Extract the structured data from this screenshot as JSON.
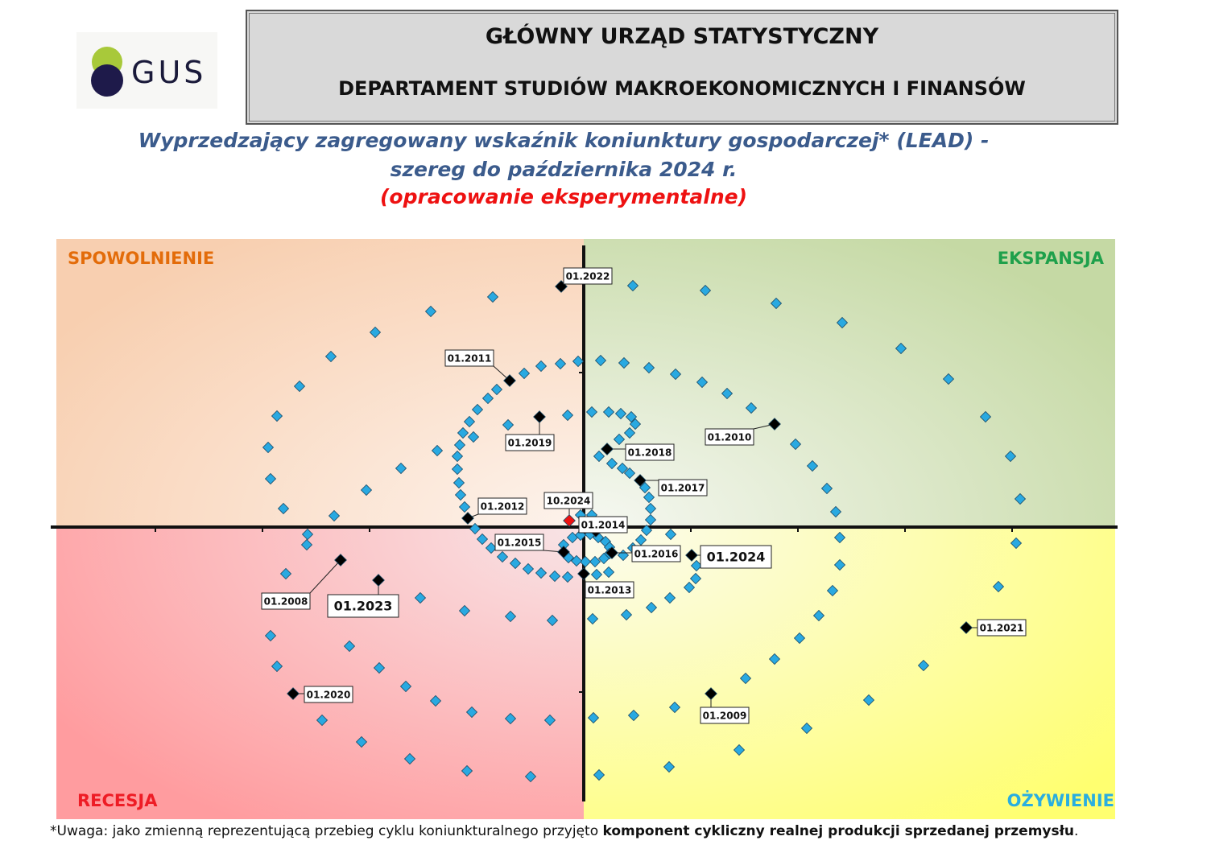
{
  "header": {
    "logo": "GUS",
    "organization": "GŁÓWNY URZĄD STATYSTYCZNY",
    "department": "DEPARTAMENT STUDIÓW MAKROEKONOMICZNYCH I FINANSÓW"
  },
  "footnote": {
    "text": "*Uwaga: jako zmienną reprezentującą przebieg cyklu koniunkturalnego przyjęto ",
    "bold": "komponent cykliczny realnej produkcji sprzedanej przemysłu",
    "end": "."
  },
  "chart_data": {
    "type": "scatter",
    "title": [
      "Wyprzedzający zagregowany wskaźnik koniunktury gospodarczej* (LEAD) -",
      "szereg do października 2024 r."
    ],
    "subtitle": "(opracowanie eksperymentalne)",
    "quadrants": [
      {
        "label": "SPOWOLNIENIE",
        "color": "#e36c0a"
      },
      {
        "label": "EKSPANSJA",
        "color": "#1fa04b"
      },
      {
        "label": "RECESJA",
        "color": "#ee1c25"
      },
      {
        "label": "OŻYWIENIE",
        "color": "#2aaee0"
      }
    ],
    "xlim": [
      -6.62,
      6.63
    ],
    "ylim": [
      -3.63,
      3.58
    ],
    "xticks": [
      -5.32,
      -3.99,
      -2.66,
      -1.33,
      1.33,
      2.66,
      3.99,
      5.32
    ],
    "yticks": [
      1.92,
      -2.05
    ],
    "series": [
      {
        "color": "#29a9e1",
        "x": [
          0.61,
          1.51,
          2.39,
          3.21,
          3.94,
          4.53,
          4.99,
          5.3,
          5.42,
          5.37,
          5.15,
          4.22,
          3.54,
          2.77,
          1.93,
          1.06,
          0.19,
          -0.66,
          -1.45,
          -2.16,
          -2.76,
          -3.25,
          -3.81,
          -3.89,
          -3.7,
          -3.44,
          -3.43,
          -3.1,
          -2.7,
          -2.27,
          -1.82,
          -3.73,
          -3.89,
          -3.92,
          -3.81,
          -3.53,
          -3.14,
          -2.59,
          -1.9,
          -1.13,
          -2.03,
          -1.48,
          -0.91,
          -0.39,
          0.11,
          0.53,
          0.84,
          1.07,
          1.31,
          1.39,
          1.4,
          1.08,
          -2.91,
          -2.54,
          -2.21,
          -1.84,
          -1.39,
          -0.91,
          -0.42,
          0.12,
          0.62,
          1.13,
          2.01,
          2.37,
          2.68,
          2.92,
          3.09,
          3.18,
          3.18,
          3.13,
          3.02,
          2.84,
          2.63,
          2.08,
          1.78,
          1.47,
          1.14,
          0.81,
          0.5,
          0.21,
          -0.07,
          -0.29,
          -0.53,
          -0.74,
          -1.08,
          -1.19,
          -1.32,
          -1.42,
          -1.5,
          -1.54,
          -1.57,
          -1.57,
          -1.55,
          -1.53,
          -1.48,
          -1.35,
          -1.26,
          -1.15,
          -1.01,
          -0.85,
          -0.69,
          -0.53,
          -0.36,
          -0.2,
          0.16,
          0.31,
          -0.14,
          -0.04,
          0.08,
          0.18,
          0.27,
          0.32,
          0.32,
          0.25,
          0.14,
          0.02,
          -0.09,
          -0.19,
          -0.25,
          0.19,
          0.35,
          0.48,
          0.57,
          0.76,
          0.81,
          0.83,
          0.83,
          0.78,
          0.71,
          0.61,
          0.49,
          0.44,
          0.57,
          0.64,
          0.59,
          0.46,
          0.31,
          0.1,
          -0.2,
          -0.94,
          -1.37,
          -0.04,
          0.1
        ],
        "y": [
          3.0,
          2.94,
          2.78,
          2.54,
          2.22,
          1.84,
          1.37,
          0.88,
          0.35,
          -0.2,
          -0.74,
          -1.72,
          -2.15,
          -2.5,
          -2.77,
          -2.98,
          -3.08,
          -3.1,
          -3.03,
          -2.88,
          -2.67,
          -2.4,
          -1.73,
          -1.35,
          -0.58,
          -0.22,
          -0.09,
          0.14,
          0.46,
          0.73,
          0.95,
          0.23,
          0.6,
          0.99,
          1.38,
          1.75,
          2.12,
          2.42,
          2.68,
          2.86,
          -0.88,
          -1.04,
          -1.11,
          -1.16,
          -1.14,
          -1.09,
          -1.0,
          -0.88,
          -0.75,
          -0.64,
          -0.48,
          -0.09,
          -1.48,
          -1.75,
          -1.98,
          -2.16,
          -2.3,
          -2.38,
          -2.4,
          -2.37,
          -2.34,
          -2.24,
          -1.88,
          -1.64,
          -1.38,
          -1.1,
          -0.79,
          -0.47,
          -0.13,
          0.19,
          0.48,
          0.76,
          1.03,
          1.48,
          1.66,
          1.8,
          1.9,
          1.98,
          2.04,
          2.07,
          2.06,
          2.03,
          2.0,
          1.91,
          1.71,
          1.6,
          1.46,
          1.31,
          1.17,
          1.02,
          0.88,
          0.72,
          0.55,
          0.4,
          0.25,
          -0.02,
          -0.15,
          -0.26,
          -0.37,
          -0.45,
          -0.52,
          -0.57,
          -0.61,
          -0.62,
          -0.59,
          -0.56,
          -0.13,
          -0.1,
          -0.09,
          -0.13,
          -0.18,
          -0.25,
          -0.33,
          -0.39,
          -0.43,
          -0.43,
          -0.42,
          -0.38,
          -0.22,
          0.88,
          0.79,
          0.73,
          0.67,
          0.49,
          0.37,
          0.23,
          0.09,
          -0.04,
          -0.16,
          -0.26,
          -0.35,
          1.09,
          1.17,
          1.28,
          1.37,
          1.41,
          1.43,
          1.43,
          1.39,
          1.27,
          1.12,
          0.15,
          0.15
        ]
      }
    ],
    "annotations": [
      {
        "text": "01.2022",
        "x": -0.28,
        "y": 2.99,
        "color": "#000000"
      },
      {
        "text": "01.2011",
        "x": -0.92,
        "y": 1.82,
        "color": "#000000"
      },
      {
        "text": "01.2019",
        "x": -0.55,
        "y": 1.37,
        "color": "#000000"
      },
      {
        "text": "01.2010",
        "x": 2.37,
        "y": 1.28,
        "color": "#000000"
      },
      {
        "text": "01.2018",
        "x": 0.29,
        "y": 0.97,
        "color": "#000000"
      },
      {
        "text": "01.2017",
        "x": 0.7,
        "y": 0.58,
        "color": "#000000"
      },
      {
        "text": "01.2012",
        "x": -1.44,
        "y": 0.11,
        "color": "#000000"
      },
      {
        "text": "10.2024",
        "x": -0.18,
        "y": 0.08,
        "color": "#ee1111"
      },
      {
        "text": "01.2014",
        "x": 0.15,
        "y": -0.05,
        "color": "#000000"
      },
      {
        "text": "01.2015",
        "x": -0.25,
        "y": -0.31,
        "color": "#000000"
      },
      {
        "text": "01.2016",
        "x": 0.35,
        "y": -0.32,
        "color": "#000000"
      },
      {
        "text": "01.2024",
        "x": 1.34,
        "y": -0.35,
        "color": "#000000"
      },
      {
        "text": "01.2013",
        "x": 0.0,
        "y": -0.58,
        "color": "#000000"
      },
      {
        "text": "01.2008",
        "x": -3.02,
        "y": -0.41,
        "color": "#000000"
      },
      {
        "text": "01.2023",
        "x": -2.55,
        "y": -0.66,
        "color": "#000000"
      },
      {
        "text": "01.2021",
        "x": 4.75,
        "y": -1.25,
        "color": "#000000"
      },
      {
        "text": "01.2020",
        "x": -3.61,
        "y": -2.07,
        "color": "#000000"
      },
      {
        "text": "01.2009",
        "x": 1.58,
        "y": -2.07,
        "color": "#000000"
      }
    ]
  }
}
